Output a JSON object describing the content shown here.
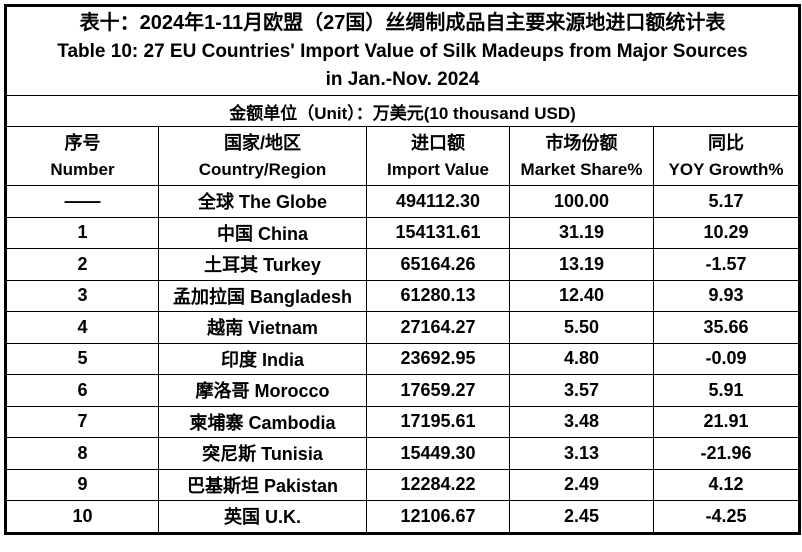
{
  "table": {
    "title_cn": "表十：2024年1-11月欧盟（27国）丝绸制成品自主要来源地进口额统计表",
    "title_en_line1": "Table 10: 27 EU Countries' Import Value of Silk Madeups from Major Sources",
    "title_en_line2": "in Jan.-Nov. 2024",
    "unit_note": "金额单位（Unit）：万美元(10 thousand USD)",
    "columns": [
      {
        "cn": "序号",
        "en": "Number"
      },
      {
        "cn": "国家/地区",
        "en": "Country/Region"
      },
      {
        "cn": "进口额",
        "en": "Import Value"
      },
      {
        "cn": "市场份额",
        "en": "Market Share%"
      },
      {
        "cn": "同比",
        "en": "YOY Growth%"
      }
    ],
    "rows": [
      {
        "number": "——",
        "country": "全球 The Globe",
        "import_value": "494112.30",
        "market_share": "100.00",
        "yoy_growth": "5.17"
      },
      {
        "number": "1",
        "country": "中国 China",
        "import_value": "154131.61",
        "market_share": "31.19",
        "yoy_growth": "10.29"
      },
      {
        "number": "2",
        "country": "土耳其 Turkey",
        "import_value": "65164.26",
        "market_share": "13.19",
        "yoy_growth": "-1.57"
      },
      {
        "number": "3",
        "country": "孟加拉国 Bangladesh",
        "import_value": "61280.13",
        "market_share": "12.40",
        "yoy_growth": "9.93"
      },
      {
        "number": "4",
        "country": "越南 Vietnam",
        "import_value": "27164.27",
        "market_share": "5.50",
        "yoy_growth": "35.66"
      },
      {
        "number": "5",
        "country": "印度 India",
        "import_value": "23692.95",
        "market_share": "4.80",
        "yoy_growth": "-0.09"
      },
      {
        "number": "6",
        "country": "摩洛哥 Morocco",
        "import_value": "17659.27",
        "market_share": "3.57",
        "yoy_growth": "5.91"
      },
      {
        "number": "7",
        "country": "柬埔寨 Cambodia",
        "import_value": "17195.61",
        "market_share": "3.48",
        "yoy_growth": "21.91"
      },
      {
        "number": "8",
        "country": "突尼斯 Tunisia",
        "import_value": "15449.30",
        "market_share": "3.13",
        "yoy_growth": "-21.96"
      },
      {
        "number": "9",
        "country": "巴基斯坦 Pakistan",
        "import_value": "12284.22",
        "market_share": "2.49",
        "yoy_growth": "4.12"
      },
      {
        "number": "10",
        "country": "英国 U.K.",
        "import_value": "12106.67",
        "market_share": "2.45",
        "yoy_growth": "-4.25"
      }
    ]
  },
  "colors": {
    "text": "#000000",
    "border": "#000000",
    "background": "#ffffff"
  }
}
